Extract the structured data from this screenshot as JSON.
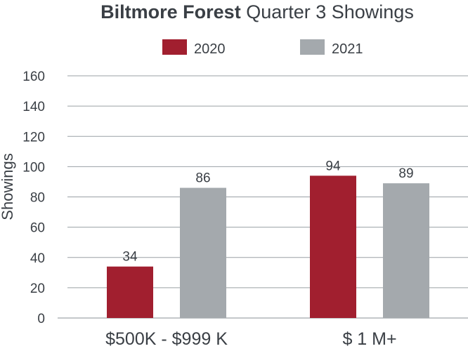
{
  "chart_data": {
    "type": "bar",
    "title_bold": "Biltmore Forest",
    "title_rest": " Quarter 3 Showings",
    "ylabel": "Showings",
    "xlabel": "",
    "ylim": [
      0,
      160
    ],
    "yticks": [
      0,
      20,
      40,
      60,
      80,
      100,
      120,
      140,
      160
    ],
    "categories": [
      "$500K - $999 K",
      "$ 1 M+"
    ],
    "series": [
      {
        "name": "2020",
        "color": "#a11f2f",
        "values": [
          34,
          94
        ]
      },
      {
        "name": "2021",
        "color": "#a4a9ad",
        "values": [
          86,
          89
        ]
      }
    ],
    "data_labels": [
      [
        "34",
        "94"
      ],
      [
        "86",
        "89"
      ]
    ],
    "legend_position": "top-center",
    "grid": true
  }
}
